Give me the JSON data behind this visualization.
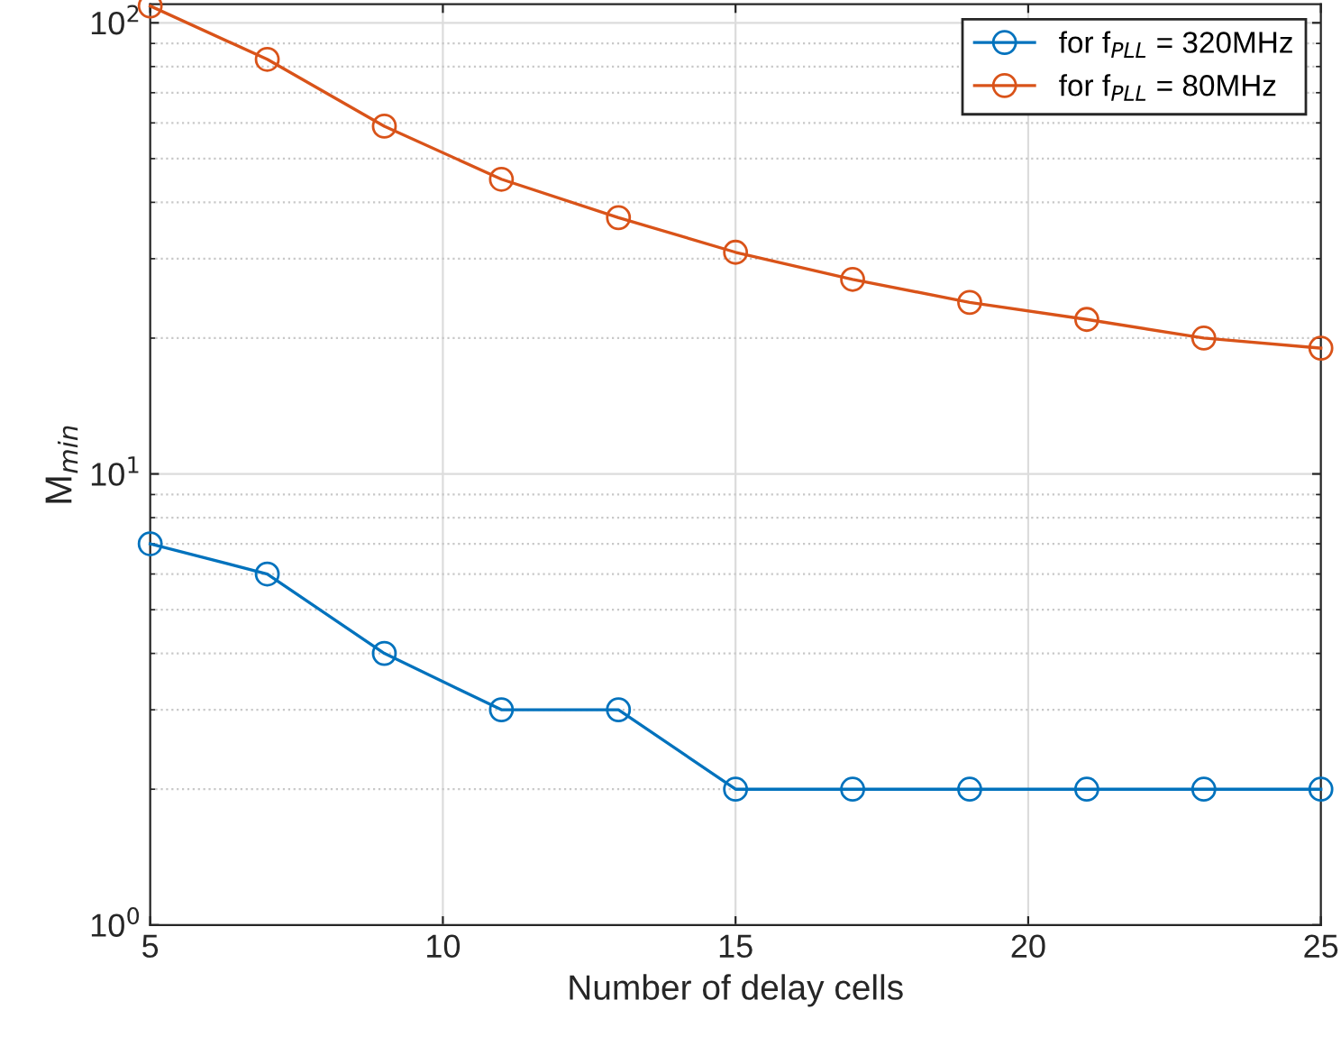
{
  "chart_data": {
    "type": "line",
    "xlabel": "Number of delay cells",
    "ylabel": "M$_{min}$",
    "x": [
      5,
      7,
      9,
      11,
      13,
      15,
      17,
      19,
      21,
      23,
      25
    ],
    "series": [
      {
        "name": "for f$_{PLL}$ = 320MHz",
        "color": "#0072bd",
        "values": [
          7,
          6,
          4,
          3,
          3,
          2,
          2,
          2,
          2,
          2,
          2
        ]
      },
      {
        "name": "for f$_{PLL}$ = 80MHz",
        "color": "#d95319",
        "values": [
          109,
          83,
          59,
          45,
          37,
          31,
          27,
          24,
          22,
          20,
          19
        ]
      }
    ],
    "log": "y",
    "xlim": [
      5,
      25
    ],
    "ylim": [
      1,
      110
    ],
    "xticks": [
      5,
      10,
      15,
      20,
      25
    ],
    "yticks": [
      {
        "value": 1,
        "label": "10$^{0}$"
      },
      {
        "value": 10,
        "label": "10$^{1}$"
      },
      {
        "value": 100,
        "label": "10$^{2}$"
      }
    ],
    "grid": true,
    "legend": "top right",
    "marker": "circle",
    "line_style": "solid"
  }
}
